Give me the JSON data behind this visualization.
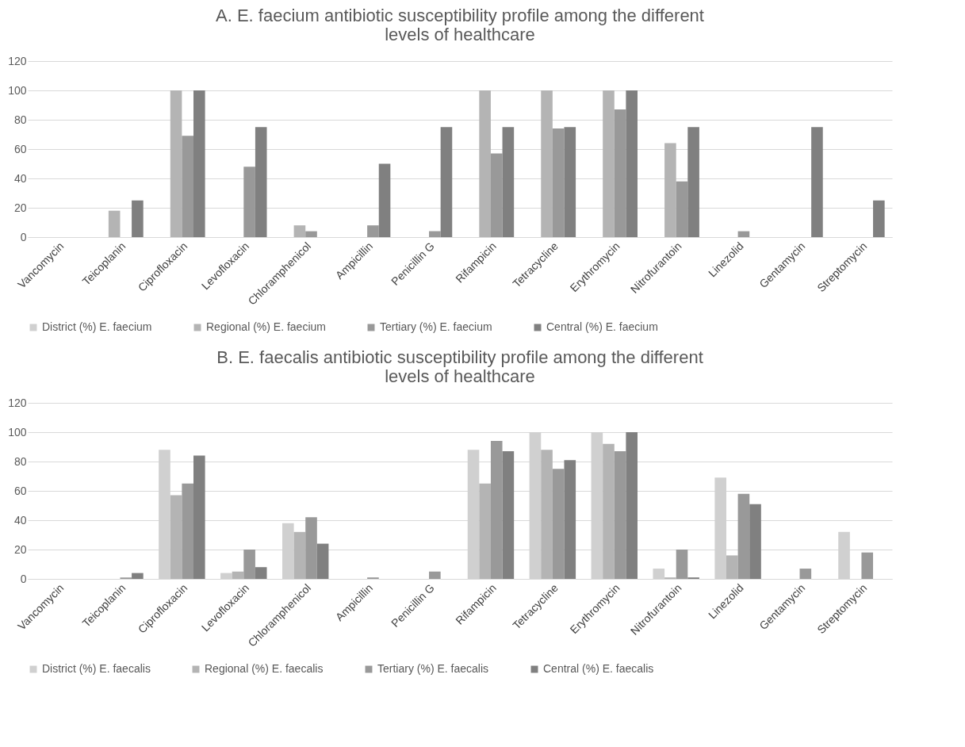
{
  "chart_data": [
    {
      "type": "bar",
      "title": "A.    E. faecium antibiotic susceptibility profile among the different levels of healthcare",
      "categories": [
        "Vancomycin",
        "Teicoplanin",
        "Ciprofloxacin",
        "Levofloxacin",
        "Chloramphenicol",
        "Ampicillin",
        "Penicillin G",
        "Rifampicin",
        "Tetracycline",
        "Erythromycin",
        "Nitrofurantoin",
        "Linezolid",
        "Gentamycin",
        "Streptomycin"
      ],
      "series": [
        {
          "name": "District (%) E. faecium",
          "color": "#d0d0d0",
          "values": [
            0,
            0,
            0,
            0,
            0,
            0,
            0,
            0,
            0,
            0,
            0,
            0,
            0,
            0
          ]
        },
        {
          "name": "Regional (%) E. faecium",
          "color": "#b4b4b4",
          "values": [
            0,
            18,
            100,
            0,
            8,
            0,
            0,
            100,
            100,
            100,
            64,
            0,
            0,
            0
          ]
        },
        {
          "name": "Tertiary (%) E. faecium",
          "color": "#999999",
          "values": [
            0,
            0,
            69,
            48,
            4,
            8,
            4,
            57,
            74,
            87,
            38,
            4,
            0,
            0
          ]
        },
        {
          "name": "Central (%) E. faecium",
          "color": "#808080",
          "values": [
            0,
            25,
            100,
            75,
            0,
            50,
            75,
            75,
            75,
            100,
            75,
            0,
            75,
            25
          ]
        }
      ],
      "ylim": [
        0,
        120
      ],
      "yticks": [
        0,
        20,
        40,
        60,
        80,
        100,
        120
      ],
      "grid": "y",
      "legend": "bottom"
    },
    {
      "type": "bar",
      "title": "B.    E. faecalis antibiotic susceptibility profile among the different levels of healthcare",
      "categories": [
        "Vancomycin",
        "Teicoplanin",
        "Ciprofloxacin",
        "Levofloxacin",
        "Chloramphenicol",
        "Ampicillin",
        "Penicillin G",
        "Rifampicin",
        "Tetracycline",
        "Erythromycin",
        "Nitrofurantoin",
        "Linezolid",
        "Gentamycin",
        "Streptomycin"
      ],
      "series": [
        {
          "name": "District (%) E. faecalis",
          "color": "#d0d0d0",
          "values": [
            0,
            0,
            88,
            4,
            38,
            0,
            0,
            88,
            100,
            100,
            7,
            69,
            0,
            32
          ]
        },
        {
          "name": "Regional (%) E. faecalis",
          "color": "#b4b4b4",
          "values": [
            0,
            0,
            57,
            5,
            32,
            0,
            0,
            65,
            88,
            92,
            1,
            16,
            0,
            0
          ]
        },
        {
          "name": "Tertiary (%) E. faecalis",
          "color": "#999999",
          "values": [
            0,
            1,
            65,
            20,
            42,
            1,
            5,
            94,
            75,
            87,
            20,
            58,
            7,
            18
          ]
        },
        {
          "name": "Central (%) E. faecalis",
          "color": "#808080",
          "values": [
            0,
            4,
            84,
            8,
            24,
            0,
            0,
            87,
            81,
            100,
            1,
            51,
            0,
            0
          ]
        }
      ],
      "ylim": [
        0,
        120
      ],
      "yticks": [
        0,
        20,
        40,
        60,
        80,
        100,
        120
      ],
      "grid": "y",
      "legend": "bottom"
    }
  ]
}
